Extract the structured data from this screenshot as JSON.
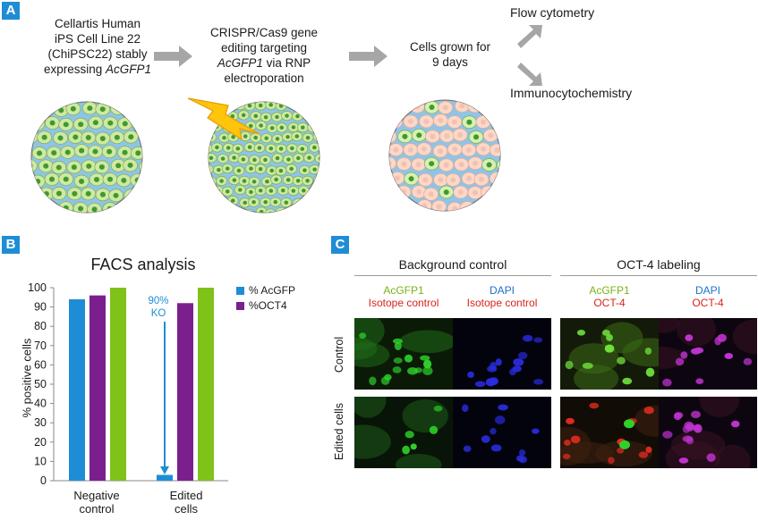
{
  "panel_a": {
    "letter": "A",
    "step1": {
      "line1": "Cellartis Human",
      "line2": "iPS Cell Line 22",
      "line3": "(ChiPSC22) stably",
      "line4_pre": "expressing ",
      "line4_em": "AcGFP1"
    },
    "step2": {
      "line1": "CRISPR/Cas9 gene",
      "line2": "editing targeting",
      "line3_em": "AcGFP1",
      "line3_post": " via RNP",
      "line4": "electroporation"
    },
    "step3": {
      "line1": "Cells grown for",
      "line2": "9 days"
    },
    "out1": "Flow cytometry",
    "out2": "Immunocytochemistry"
  },
  "panel_b": {
    "letter": "B",
    "legend": [
      {
        "label": "% AcGFP",
        "color": "#1f8dd6"
      },
      {
        "label": "%OCT4",
        "color": "#7b1f8e"
      }
    ],
    "annotation": {
      "line1": "90%",
      "line2": "KO"
    }
  },
  "panel_c": {
    "letter": "C",
    "group1_title": "Background control",
    "group2_title": "OCT-4 labeling",
    "columns": [
      {
        "top": "AcGFP1",
        "top_color": "green",
        "bottom": "Isotope control"
      },
      {
        "top": "DAPI",
        "top_color": "blue",
        "bottom": "Isotope control"
      },
      {
        "top": "AcGFP1",
        "top_color": "green",
        "bottom": "OCT-4"
      },
      {
        "top": "DAPI",
        "top_color": "blue",
        "bottom": "OCT-4"
      }
    ],
    "rows": [
      "Control",
      "Edited cells"
    ]
  },
  "chart_data": {
    "type": "bar",
    "title": "FACS analysis",
    "ylabel": "% positive cells",
    "xlabel": "",
    "ylim": [
      0,
      100
    ],
    "yticks": [
      0,
      10,
      20,
      30,
      40,
      50,
      60,
      70,
      80,
      90,
      100
    ],
    "categories": [
      "Negative control",
      "Edited cells"
    ],
    "category_lines": [
      [
        "Negative",
        "control"
      ],
      [
        "Edited",
        "cells"
      ]
    ],
    "series": [
      {
        "name": "% AcGFP",
        "color": "#1f8dd6",
        "values": [
          94,
          3
        ]
      },
      {
        "color": "#7b1f8e",
        "name": "%OCT4",
        "values": [
          96,
          92
        ]
      },
      {
        "color": "#7fc21a",
        "values": [
          100,
          100
        ]
      }
    ]
  }
}
